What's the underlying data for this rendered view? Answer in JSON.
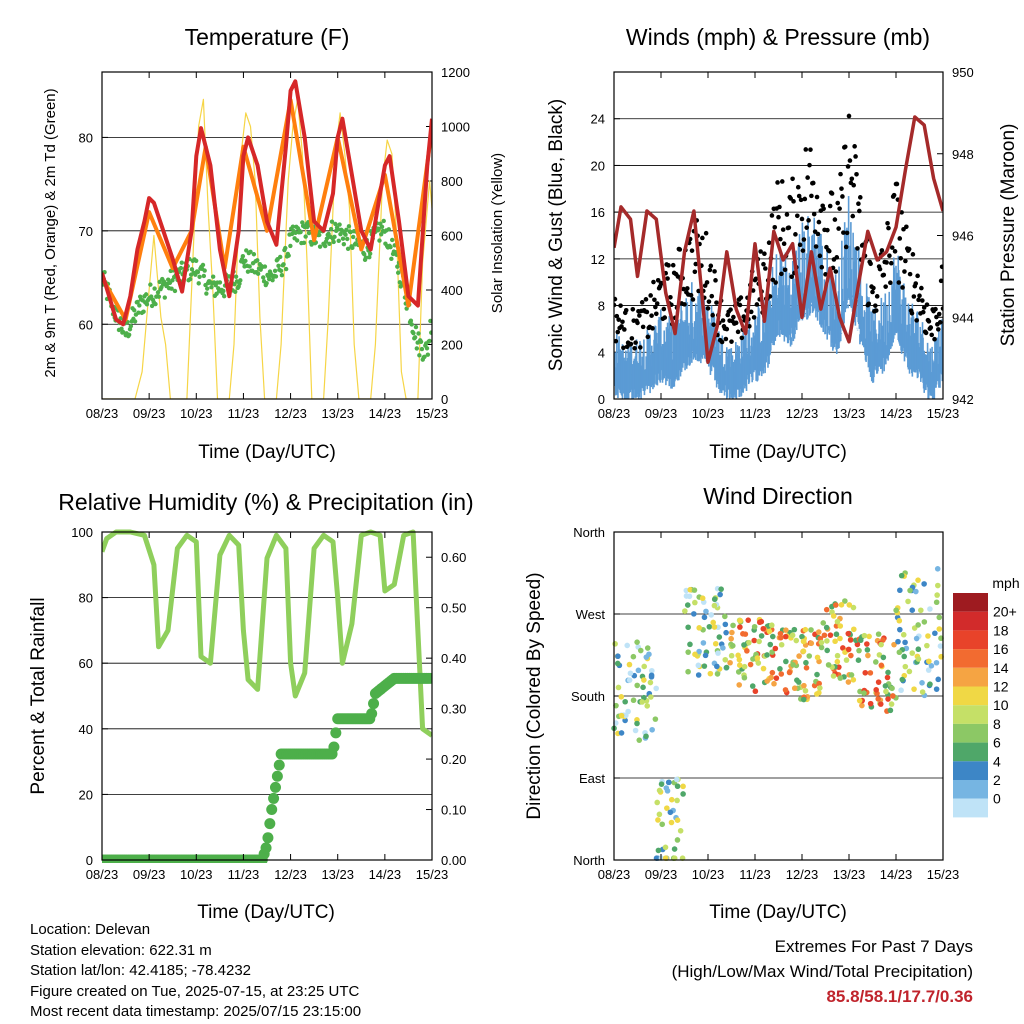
{
  "chart_data": [
    {
      "type": "line",
      "title": "Temperature (F)",
      "xlabel": "Time (Day/UTC)",
      "ylabel": "2m & 9m T (Red, Orange) & 2m Td (Green)",
      "y2label": "Solar Insolation (Yellow)",
      "ylim": [
        52,
        87
      ],
      "y2lim": [
        0,
        1200
      ],
      "yticks": [
        "60",
        "70",
        "80"
      ],
      "y2ticks": [
        "0",
        "200",
        "400",
        "600",
        "800",
        "1000",
        "1200"
      ],
      "x_tick_labels": [
        "08/23",
        "09/23",
        "10/23",
        "11/23",
        "12/23",
        "13/23",
        "14/23",
        "15/23"
      ],
      "grid": true,
      "series": [
        {
          "role": "2m T",
          "color": "#d62728",
          "x": [
            0,
            0.15,
            0.3,
            0.45,
            0.6,
            0.75,
            0.9,
            1.0,
            1.1,
            1.3,
            1.5,
            1.7,
            1.9,
            2.0,
            2.1,
            2.3,
            2.5,
            2.7,
            2.9,
            3.0,
            3.1,
            3.3,
            3.5,
            3.7,
            3.9,
            4.0,
            4.1,
            4.3,
            4.5,
            4.7,
            4.9,
            5.0,
            5.1,
            5.3,
            5.5,
            5.7,
            5.9,
            6.0,
            6.1,
            6.3,
            6.5,
            6.7,
            6.9,
            7.0
          ],
          "y": [
            65.5,
            63,
            60.5,
            60,
            63,
            68,
            71,
            73.5,
            73,
            70,
            67,
            63.5,
            70,
            78,
            81,
            77,
            68,
            63,
            70,
            78,
            80,
            77,
            71,
            68.5,
            79,
            85,
            86,
            80,
            71,
            70,
            74,
            80,
            82,
            76,
            70,
            68,
            74,
            77,
            78,
            71,
            63,
            62,
            77,
            82
          ]
        },
        {
          "role": "9m T",
          "color": "#ff7f0e",
          "x": [
            0,
            0.5,
            1.0,
            1.5,
            1.9,
            2.2,
            2.6,
            3.0,
            3.5,
            4.0,
            4.5,
            5.0,
            5.5,
            6.0,
            6.5,
            7.0
          ],
          "y": [
            65,
            60.5,
            72,
            66,
            70,
            79,
            66,
            79,
            70,
            84,
            69,
            80,
            68,
            76,
            62,
            81
          ]
        },
        {
          "role": "2m Td",
          "color": "#4daf4a",
          "x": [
            0,
            0.3,
            0.5,
            0.8,
            1.0,
            1.3,
            1.6,
            1.9,
            2.0,
            2.3,
            2.6,
            2.9,
            3.0,
            3.3,
            3.6,
            3.9,
            4.0,
            4.3,
            4.6,
            4.9,
            5.0,
            5.3,
            5.6,
            5.9,
            6.0,
            6.3,
            6.5,
            6.7,
            6.9,
            7.0
          ],
          "y": [
            65,
            61,
            59,
            62,
            63,
            64,
            65,
            66,
            66,
            64,
            64,
            65,
            67,
            66,
            65,
            67,
            69,
            70,
            69,
            70,
            70,
            69,
            68,
            70,
            70,
            66,
            62,
            58,
            57,
            61
          ]
        },
        {
          "role": "Solar Insolation",
          "axis": "y2",
          "color": "#f5d33c",
          "x": [
            0,
            0.15,
            0.25,
            0.4,
            0.55,
            0.7,
            0.85,
            1.0,
            1.1,
            1.25,
            1.35,
            1.45,
            1.6,
            1.7,
            1.8,
            1.95,
            2.05,
            2.15,
            2.25,
            2.35,
            2.45,
            2.6,
            2.7,
            2.8,
            2.95,
            3.05,
            3.15,
            3.25,
            3.35,
            3.45,
            3.6,
            3.7,
            3.8,
            3.95,
            4.05,
            4.15,
            4.25,
            4.35,
            4.45,
            4.6,
            4.7,
            4.8,
            4.95,
            5.05,
            5.15,
            5.25,
            5.35,
            5.45,
            5.6,
            5.7,
            5.8,
            5.95,
            6.05,
            6.15,
            6.25,
            6.35,
            6.45,
            6.6,
            6.7,
            6.8,
            6.95,
            7.0
          ],
          "y": [
            0,
            0,
            0,
            0,
            0,
            0,
            100,
            400,
            600,
            300,
            200,
            0,
            0,
            0,
            0,
            600,
            1000,
            1100,
            700,
            400,
            0,
            0,
            0,
            200,
            900,
            1050,
            1000,
            800,
            300,
            0,
            0,
            0,
            200,
            800,
            1000,
            1100,
            900,
            500,
            0,
            0,
            0,
            300,
            900,
            1050,
            900,
            700,
            200,
            0,
            0,
            0,
            200,
            800,
            950,
            900,
            600,
            100,
            0,
            0,
            0,
            500,
            800,
            700
          ]
        }
      ]
    },
    {
      "type": "line",
      "title": "Winds (mph) & Pressure (mb)",
      "xlabel": "Time (Day/UTC)",
      "ylabel": "Sonic Wind & Gust (Blue, Black)",
      "y2label": "Station Pressure (Maroon)",
      "ylim": [
        0,
        28
      ],
      "y2lim": [
        942,
        950
      ],
      "yticks": [
        "0",
        "4",
        "8",
        "12",
        "16",
        "20",
        "24"
      ],
      "y2ticks": [
        "942",
        "944",
        "946",
        "948",
        "950"
      ],
      "x_tick_labels": [
        "08/23",
        "09/23",
        "10/23",
        "11/23",
        "12/23",
        "13/23",
        "14/23",
        "15/23"
      ],
      "grid": true,
      "series": [
        {
          "role": "Sonic Wind",
          "color": "#5b9bd5",
          "x": [
            0,
            0.25,
            0.5,
            0.75,
            1.0,
            1.25,
            1.5,
            1.75,
            2.0,
            2.25,
            2.5,
            2.75,
            3.0,
            3.25,
            3.5,
            3.75,
            4.0,
            4.25,
            4.5,
            4.75,
            5.0,
            5.25,
            5.5,
            5.75,
            6.0,
            6.25,
            6.5,
            6.75,
            7.0
          ],
          "y": [
            4,
            3,
            3.5,
            4,
            5,
            4.5,
            6,
            7,
            6,
            4,
            3,
            4,
            5,
            6,
            9,
            8,
            10,
            11,
            9,
            7,
            12,
            8,
            5,
            6,
            9,
            6,
            5,
            3,
            5
          ]
        },
        {
          "role": "Gust",
          "color": "#000000",
          "x": [
            0,
            0.25,
            0.5,
            0.75,
            1.0,
            1.25,
            1.5,
            1.75,
            2.0,
            2.25,
            2.5,
            2.75,
            3.0,
            3.25,
            3.5,
            3.75,
            4.0,
            4.25,
            4.5,
            4.75,
            5.0,
            5.25,
            5.5,
            5.75,
            6.0,
            6.25,
            6.5,
            6.75,
            7.0
          ],
          "y": [
            7,
            6,
            6,
            7,
            9,
            9,
            11,
            12,
            11,
            7,
            6,
            7,
            9,
            11,
            15,
            14,
            17,
            18,
            15,
            13,
            20,
            14,
            9,
            11,
            15,
            11,
            9,
            6,
            9
          ]
        },
        {
          "role": "Station Pressure",
          "axis": "y2",
          "color": "#a52a2a",
          "x": [
            0,
            0.15,
            0.35,
            0.5,
            0.7,
            0.9,
            1.1,
            1.3,
            1.5,
            1.7,
            1.9,
            2.0,
            2.2,
            2.4,
            2.6,
            2.8,
            3.0,
            3.2,
            3.4,
            3.6,
            3.8,
            4.0,
            4.2,
            4.4,
            4.6,
            4.8,
            5.0,
            5.2,
            5.4,
            5.6,
            5.8,
            6.0,
            6.2,
            6.4,
            6.6,
            6.8,
            7.0
          ],
          "y": [
            945.7,
            946.7,
            946.4,
            945,
            946.6,
            946.4,
            944.6,
            943.6,
            945.6,
            946.6,
            944.2,
            942.9,
            943.8,
            945.6,
            944.2,
            943.6,
            945.8,
            943.9,
            946.1,
            945.4,
            945.8,
            944,
            945.6,
            944.2,
            945.2,
            944,
            943.4,
            944.8,
            946.1,
            945.4,
            945.6,
            946.2,
            947.6,
            948.9,
            948.7,
            947.4,
            946.6
          ]
        }
      ]
    },
    {
      "type": "scatter",
      "title": "Relative Humidity (%) & Precipitation (in)",
      "xlabel": "Time (Day/UTC)",
      "ylabel": "Percent & Total Rainfall",
      "ylim": [
        0,
        100
      ],
      "y2lim": [
        0,
        0.65
      ],
      "yticks": [
        "0",
        "20",
        "40",
        "60",
        "80",
        "100"
      ],
      "y2ticks": [
        "0.00",
        "0.10",
        "0.20",
        "0.30",
        "0.40",
        "0.50",
        "0.60"
      ],
      "x_tick_labels": [
        "08/23",
        "09/23",
        "10/23",
        "11/23",
        "12/23",
        "13/23",
        "14/23",
        "15/23"
      ],
      "grid": true,
      "series": [
        {
          "role": "Relative Humidity",
          "color": "#8fcf5c",
          "x": [
            0,
            0.1,
            0.3,
            0.6,
            0.9,
            1.1,
            1.2,
            1.4,
            1.6,
            1.8,
            2.0,
            2.1,
            2.3,
            2.5,
            2.7,
            2.9,
            3.0,
            3.1,
            3.3,
            3.5,
            3.7,
            3.9,
            4.0,
            4.1,
            4.3,
            4.5,
            4.7,
            4.9,
            5.0,
            5.1,
            5.3,
            5.5,
            5.7,
            5.9,
            6.0,
            6.2,
            6.4,
            6.6,
            6.8,
            7.0
          ],
          "y": [
            94,
            98,
            100,
            100,
            99,
            90,
            65,
            70,
            95,
            99,
            97,
            62,
            60,
            93,
            99,
            96,
            70,
            55,
            52,
            92,
            99,
            95,
            60,
            50,
            57,
            95,
            99,
            97,
            80,
            60,
            72,
            99,
            100,
            99,
            82,
            84,
            99,
            100,
            40,
            38
          ]
        },
        {
          "role": "Total Precipitation",
          "axis": "y2",
          "color": "#4daf4a",
          "x": [
            0,
            0.5,
            1.0,
            1.5,
            2.0,
            2.5,
            3.0,
            3.4,
            3.5,
            3.6,
            3.8,
            4.0,
            4.5,
            4.9,
            5.0,
            5.5,
            5.7,
            5.8,
            6.2,
            6.5,
            6.9,
            7.0
          ],
          "y": [
            0,
            0,
            0,
            0,
            0,
            0,
            0,
            0,
            0.03,
            0.1,
            0.21,
            0.21,
            0.21,
            0.21,
            0.28,
            0.28,
            0.28,
            0.33,
            0.36,
            0.36,
            0.36,
            0.36
          ]
        }
      ]
    },
    {
      "type": "scatter",
      "title": "Wind Direction",
      "xlabel": "Time (Day/UTC)",
      "ylabel": "Direction (Colored By Speed)",
      "yticks": [
        "North",
        "East",
        "South",
        "West",
        "North"
      ],
      "x_tick_labels": [
        "08/23",
        "09/23",
        "10/23",
        "11/23",
        "12/23",
        "13/23",
        "14/23",
        "15/23"
      ],
      "grid": true,
      "colorbar": {
        "title": "mph",
        "labels": [
          "20+",
          "18",
          "16",
          "14",
          "12",
          "10",
          "8",
          "6",
          "4",
          "2",
          "0"
        ],
        "colors": [
          "#9e1b20",
          "#d22b2b",
          "#e8432a",
          "#f26b30",
          "#f5a443",
          "#f0d845",
          "#c5e067",
          "#8cc865",
          "#4fa769",
          "#3d86c6",
          "#76b5e2",
          "#bfe3f7"
        ]
      },
      "bands": [
        {
          "x0": 0.0,
          "x1": 0.9,
          "center": 185,
          "spread": 55
        },
        {
          "x0": 0.9,
          "x1": 1.5,
          "center": 40,
          "spread": 50
        },
        {
          "x0": 1.5,
          "x1": 2.4,
          "center": 250,
          "spread": 50
        },
        {
          "x0": 2.4,
          "x1": 3.4,
          "center": 225,
          "spread": 40
        },
        {
          "x0": 3.4,
          "x1": 4.4,
          "center": 215,
          "spread": 40
        },
        {
          "x0": 4.4,
          "x1": 5.2,
          "center": 240,
          "spread": 45
        },
        {
          "x0": 5.2,
          "x1": 6.0,
          "center": 205,
          "spread": 45
        },
        {
          "x0": 6.0,
          "x1": 7.0,
          "center": 250,
          "spread": 70
        }
      ]
    }
  ],
  "station_info": {
    "location": "Location: Delevan",
    "elevation": "Station elevation: 622.31 m",
    "latlon": "Station lat/lon: 42.4185; -78.4232",
    "created": "Figure created on Tue, 2025-07-15, at 23:25 UTC",
    "recent": "Most recent data timestamp: 2025/07/15 23:15:00"
  },
  "extremes": {
    "title": "Extremes For Past 7 Days",
    "subtitle": "(High/Low/Max Wind/Total Precipitation)",
    "values": "85.8/58.1/17.7/0.36"
  }
}
